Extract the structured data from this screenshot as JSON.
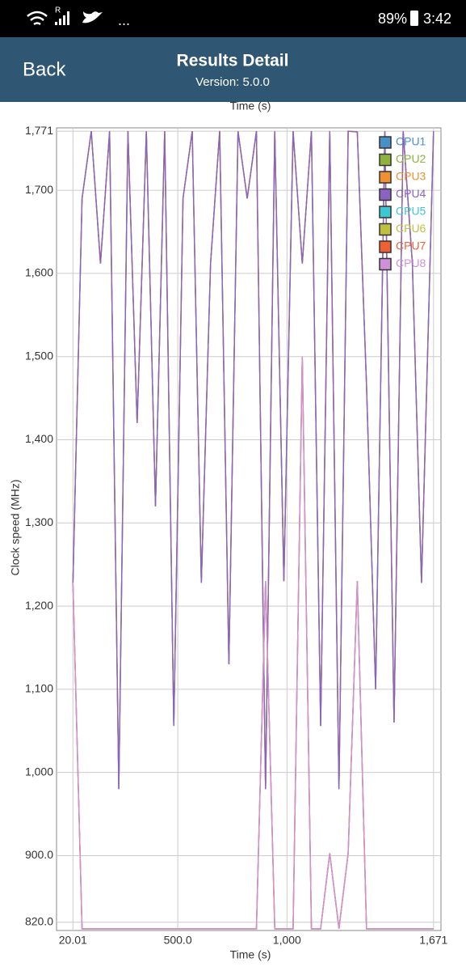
{
  "status_bar": {
    "carrier_mark": "R",
    "more": "...",
    "battery": "89%",
    "time": "3:42"
  },
  "header": {
    "back": "Back",
    "title": "Results Detail",
    "subtitle": "Version: 5.0.0"
  },
  "chart_data": {
    "type": "line",
    "top_label": "Time (s)",
    "x_label": "Time (s)",
    "y_label": "Clock speed (MHz)",
    "x": [
      20.01,
      62,
      104,
      146,
      188,
      230,
      272,
      314,
      356,
      398,
      440,
      482,
      524,
      566,
      608,
      650,
      692,
      734,
      776,
      818,
      860,
      902,
      944,
      986,
      1028,
      1070,
      1112,
      1154,
      1196,
      1238,
      1280,
      1322,
      1364,
      1406,
      1448,
      1490,
      1532,
      1574,
      1616,
      1671
    ],
    "xlim": [
      -55,
      1705
    ],
    "xticks": [
      20.01,
      {
        "value": 500,
        "label": "500.0"
      },
      {
        "value": 1000,
        "label": "1,000"
      },
      {
        "value": 1671,
        "label": "1,671"
      }
    ],
    "ylim": [
      810,
      1775
    ],
    "yticks": [
      {
        "value": 820,
        "label": "820.0"
      },
      {
        "value": 900,
        "label": "900.0"
      },
      {
        "value": 1000,
        "label": "1,000"
      },
      {
        "value": 1100,
        "label": "1,100"
      },
      {
        "value": 1200,
        "label": "1,200"
      },
      {
        "value": 1300,
        "label": "1,300"
      },
      {
        "value": 1400,
        "label": "1,400"
      },
      {
        "value": 1500,
        "label": "1,500"
      },
      {
        "value": 1600,
        "label": "1,600"
      },
      {
        "value": 1700,
        "label": "1,700"
      },
      {
        "value": 1771,
        "label": "1,771"
      }
    ],
    "grid": true,
    "legend": "top-right",
    "series": [
      {
        "name": "CPU1",
        "color": "#4a90c8",
        "values": [
          1228,
          1690,
          1771,
          1612,
          1771,
          980,
          1771,
          1420,
          1771,
          1320,
          1771,
          1056,
          1690,
          1771,
          1228,
          1612,
          1771,
          1130,
          1771,
          1690,
          1771,
          980,
          1771,
          1230,
          1771,
          1612,
          1771,
          1056,
          1771,
          980,
          1771,
          1770,
          1466,
          1100,
          1771,
          1060,
          1771,
          1612,
          1228,
          1771
        ]
      },
      {
        "name": "CPU2",
        "color": "#8db33c",
        "values": [
          1228,
          1690,
          1771,
          1612,
          1771,
          980,
          1771,
          1420,
          1771,
          1320,
          1771,
          1056,
          1690,
          1771,
          1228,
          1612,
          1771,
          1130,
          1771,
          1690,
          1771,
          980,
          1771,
          1230,
          1771,
          1612,
          1771,
          1056,
          1771,
          980,
          1771,
          1770,
          1466,
          1100,
          1771,
          1060,
          1771,
          1612,
          1228,
          1771
        ]
      },
      {
        "name": "CPU3",
        "color": "#f09030",
        "values": [
          1228,
          1690,
          1771,
          1612,
          1771,
          980,
          1771,
          1420,
          1771,
          1320,
          1771,
          1056,
          1690,
          1771,
          1228,
          1612,
          1771,
          1130,
          1771,
          1690,
          1771,
          980,
          1771,
          1230,
          1771,
          1612,
          1771,
          1056,
          1771,
          980,
          1771,
          1770,
          1466,
          1100,
          1771,
          1060,
          1771,
          1612,
          1228,
          1771
        ]
      },
      {
        "name": "CPU4",
        "color": "#8a63c0",
        "values": [
          1228,
          1690,
          1771,
          1612,
          1771,
          980,
          1771,
          1420,
          1771,
          1320,
          1771,
          1056,
          1690,
          1771,
          1228,
          1612,
          1771,
          1130,
          1771,
          1690,
          1771,
          980,
          1771,
          1230,
          1771,
          1612,
          1771,
          1056,
          1771,
          980,
          1771,
          1770,
          1466,
          1100,
          1771,
          1060,
          1771,
          1612,
          1228,
          1771
        ]
      },
      {
        "name": "CPU5",
        "color": "#3cc8d0",
        "values": [
          1228,
          812,
          812,
          812,
          812,
          812,
          812,
          812,
          812,
          812,
          812,
          812,
          812,
          812,
          812,
          812,
          812,
          812,
          812,
          812,
          812,
          1230,
          812,
          812,
          812,
          1500,
          812,
          812,
          903,
          812,
          903,
          1230,
          812,
          812,
          812,
          812,
          812,
          812,
          812,
          812
        ]
      },
      {
        "name": "CPU6",
        "color": "#c0c040",
        "values": [
          1228,
          812,
          812,
          812,
          812,
          812,
          812,
          812,
          812,
          812,
          812,
          812,
          812,
          812,
          812,
          812,
          812,
          812,
          812,
          812,
          812,
          1230,
          812,
          812,
          812,
          1500,
          812,
          812,
          903,
          812,
          903,
          1230,
          812,
          812,
          812,
          812,
          812,
          812,
          812,
          812
        ]
      },
      {
        "name": "CPU7",
        "color": "#f06030",
        "values": [
          1228,
          812,
          812,
          812,
          812,
          812,
          812,
          812,
          812,
          812,
          812,
          812,
          812,
          812,
          812,
          812,
          812,
          812,
          812,
          812,
          812,
          1230,
          812,
          812,
          812,
          1500,
          812,
          812,
          903,
          812,
          903,
          1230,
          812,
          812,
          812,
          812,
          812,
          812,
          812,
          812
        ]
      },
      {
        "name": "CPU8",
        "color": "#d090d8",
        "values": [
          1228,
          812,
          812,
          812,
          812,
          812,
          812,
          812,
          812,
          812,
          812,
          812,
          812,
          812,
          812,
          812,
          812,
          812,
          812,
          812,
          812,
          1230,
          812,
          812,
          812,
          1500,
          812,
          812,
          903,
          812,
          903,
          1230,
          812,
          812,
          812,
          812,
          812,
          812,
          812,
          812
        ]
      }
    ]
  }
}
